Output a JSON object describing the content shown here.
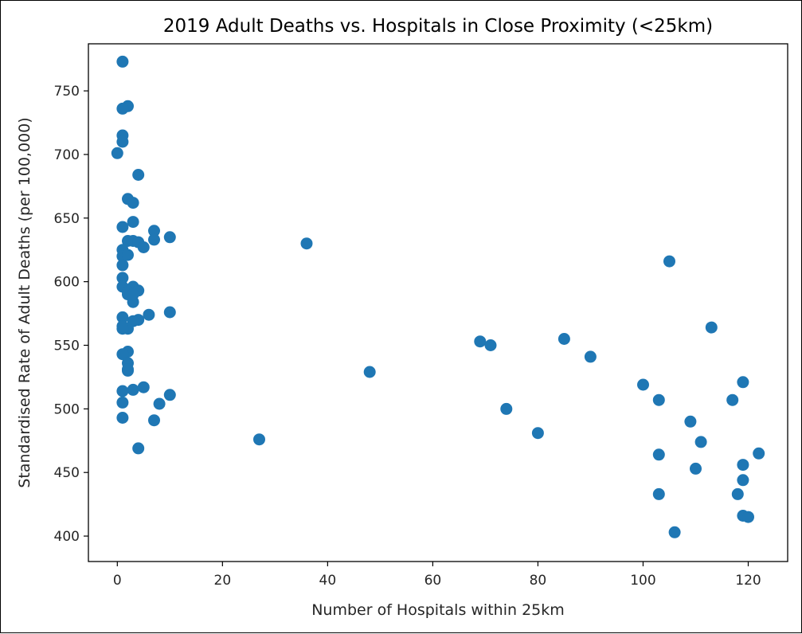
{
  "chart_data": {
    "type": "scatter",
    "title": "2019 Adult Deaths vs. Hospitals in Close Proximity (<25km)",
    "xlabel": "Number of Hospitals within 25km",
    "ylabel": "Standardised Rate of Adult Deaths (per 100,000)",
    "xlim": [
      -5.5,
      127.5
    ],
    "ylim": [
      380,
      787
    ],
    "xticks": [
      0,
      20,
      40,
      60,
      80,
      100,
      120
    ],
    "yticks": [
      400,
      450,
      500,
      550,
      600,
      650,
      700,
      750
    ],
    "grid": false,
    "color": "#1f77b4",
    "x": [
      1,
      2,
      1,
      1,
      1,
      0,
      4,
      2,
      3,
      1,
      3,
      7,
      10,
      2,
      3,
      4,
      5,
      7,
      1,
      1,
      1,
      2,
      1,
      1,
      2,
      3,
      4,
      2,
      3,
      3,
      1,
      10,
      6,
      4,
      3,
      1,
      2,
      1,
      2,
      1,
      2,
      2,
      2,
      3,
      5,
      1,
      10,
      8,
      1,
      7,
      1,
      4,
      36,
      48,
      27,
      69,
      71,
      74,
      80,
      85,
      90,
      100,
      103,
      103,
      103,
      105,
      106,
      109,
      110,
      111,
      113,
      117,
      118,
      119,
      119,
      119,
      119,
      120,
      122
    ],
    "y": [
      773,
      738,
      736,
      715,
      710,
      701,
      684,
      665,
      662,
      643,
      647,
      640,
      635,
      632,
      632,
      631,
      627,
      633,
      625,
      620,
      613,
      621,
      603,
      596,
      590,
      596,
      593,
      592,
      584,
      590,
      572,
      576,
      574,
      570,
      569,
      565,
      563,
      563,
      545,
      543,
      536,
      530,
      531,
      515,
      517,
      514,
      511,
      504,
      505,
      491,
      493,
      469,
      630,
      529,
      476,
      553,
      550,
      500,
      481,
      555,
      541,
      519,
      507,
      464,
      433,
      616,
      403,
      490,
      453,
      474,
      564,
      507,
      433,
      456,
      444,
      521,
      416,
      415,
      465
    ]
  }
}
